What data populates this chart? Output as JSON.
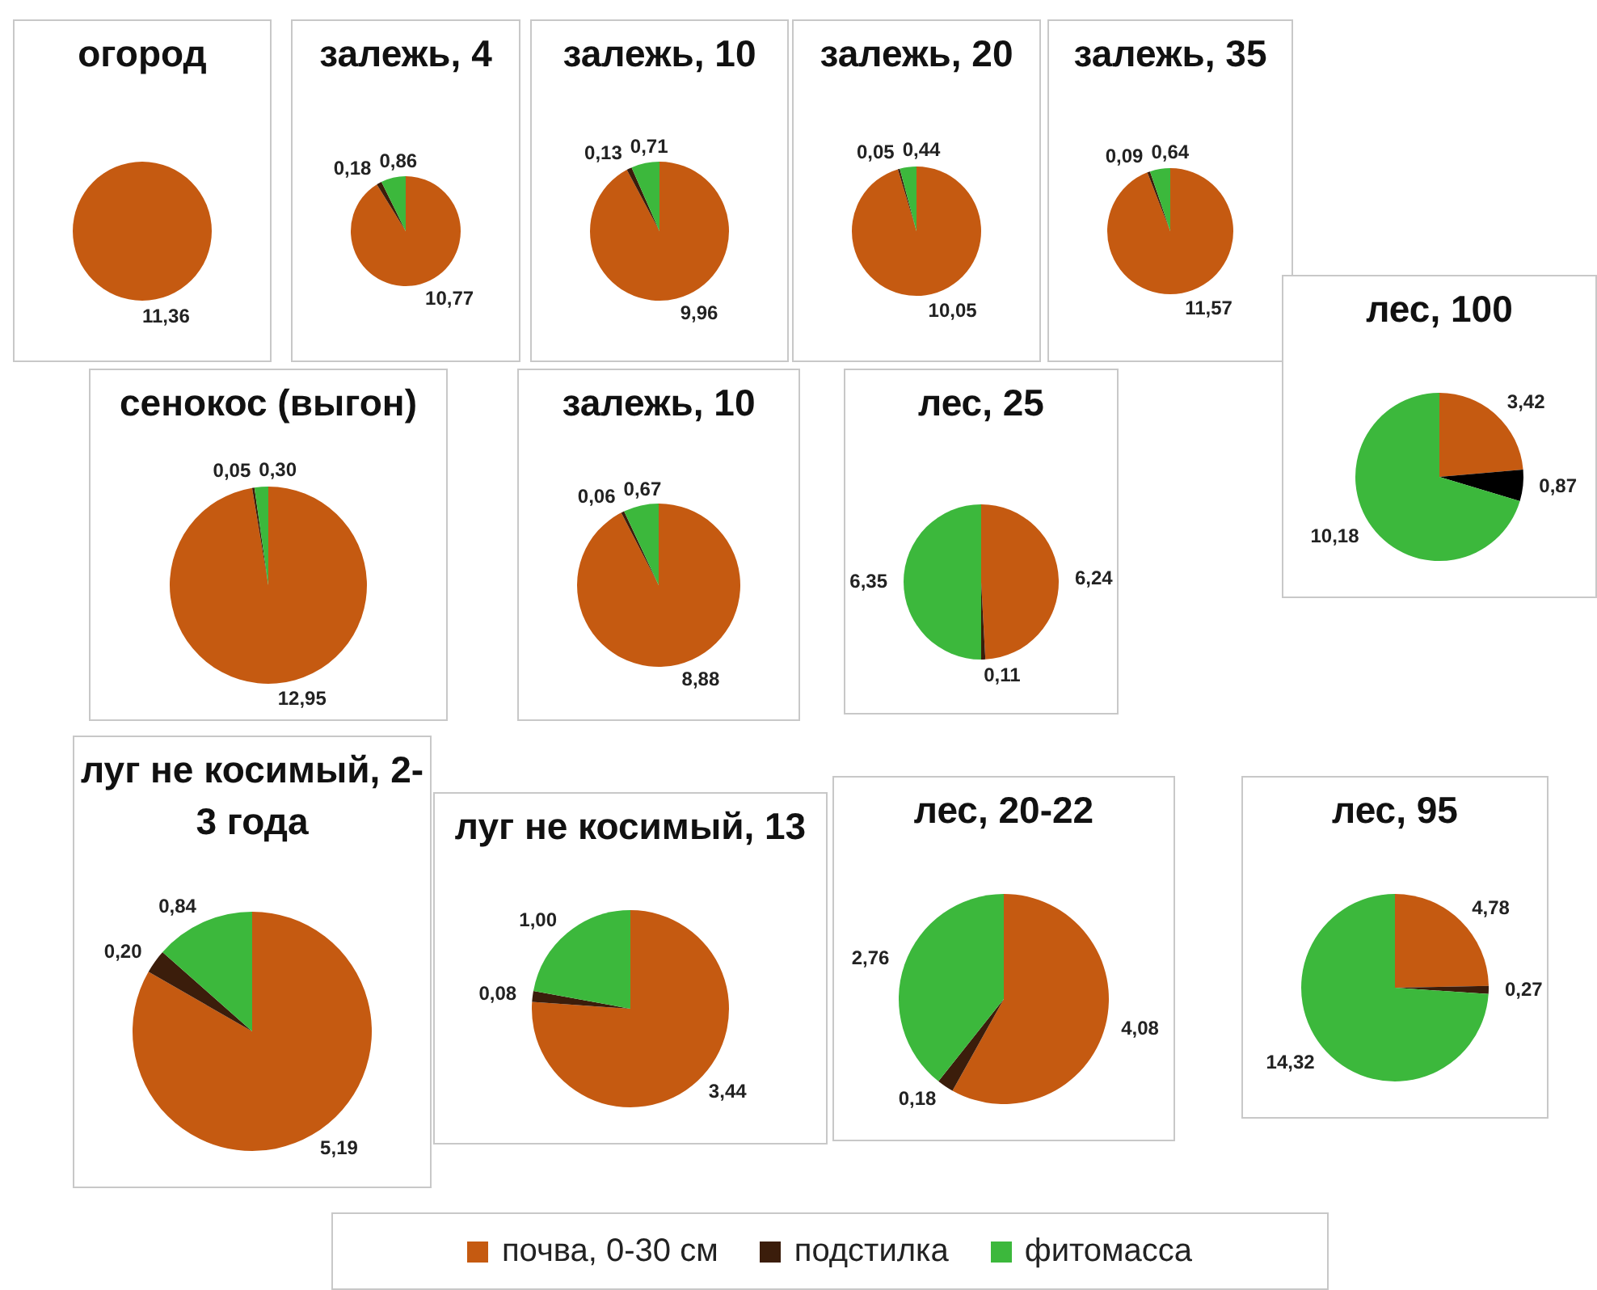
{
  "chart_data": [
    {
      "type": "pie",
      "title": "огород",
      "categories": [
        null,
        null,
        null
      ],
      "values": [
        11.36,
        0,
        0
      ],
      "value_labels": [
        "11,36",
        null,
        null
      ],
      "colors": [
        "#c55a11",
        "#3b1d0b",
        "#3cb83c"
      ]
    },
    {
      "type": "pie",
      "title": "залежь, 4",
      "categories": [
        null,
        null,
        null
      ],
      "values": [
        10.77,
        0.18,
        0.86
      ],
      "value_labels": [
        "10,77",
        "0,18",
        "0,86"
      ],
      "colors": [
        "#c55a11",
        "#3b1d0b",
        "#3cb83c"
      ]
    },
    {
      "type": "pie",
      "title": "залежь, 10",
      "categories": [
        null,
        null,
        null
      ],
      "values": [
        9.96,
        0.13,
        0.71
      ],
      "value_labels": [
        "9,96",
        "0,13",
        "0,71"
      ],
      "colors": [
        "#c55a11",
        "#3b1d0b",
        "#3cb83c"
      ]
    },
    {
      "type": "pie",
      "title": "залежь, 20",
      "categories": [
        null,
        null,
        null
      ],
      "values": [
        10.05,
        0.05,
        0.44
      ],
      "value_labels": [
        "10,05",
        "0,05",
        "0,44"
      ],
      "colors": [
        "#c55a11",
        "#3b1d0b",
        "#3cb83c"
      ]
    },
    {
      "type": "pie",
      "title": "залежь, 35",
      "categories": [
        null,
        null,
        null
      ],
      "values": [
        11.57,
        0.09,
        0.64
      ],
      "value_labels": [
        "11,57",
        "0,09",
        "0,64"
      ],
      "colors": [
        "#c55a11",
        "#3b1d0b",
        "#3cb83c"
      ]
    },
    {
      "type": "pie",
      "title": "лес,  100",
      "categories": [
        null,
        null,
        null
      ],
      "values": [
        3.42,
        0.87,
        10.18
      ],
      "value_labels": [
        "3,42",
        "0,87",
        "10,18"
      ],
      "colors": [
        "#c55a11",
        "#000000",
        "#3cb83c"
      ]
    },
    {
      "type": "pie",
      "title": "сенокос (выгон)",
      "categories": [
        null,
        null,
        null
      ],
      "values": [
        12.95,
        0.05,
        0.3
      ],
      "value_labels": [
        "12,95",
        "0,05",
        "0,30"
      ],
      "colors": [
        "#c55a11",
        "#3b1d0b",
        "#3cb83c"
      ]
    },
    {
      "type": "pie",
      "title": "залежь, 10",
      "categories": [
        null,
        null,
        null
      ],
      "values": [
        8.88,
        0.06,
        0.67
      ],
      "value_labels": [
        "8,88",
        "0,06",
        "0,67"
      ],
      "colors": [
        "#c55a11",
        "#3b1d0b",
        "#3cb83c"
      ]
    },
    {
      "type": "pie",
      "title": "лес, 25",
      "categories": [
        null,
        null,
        null
      ],
      "values": [
        6.24,
        0.11,
        6.35
      ],
      "value_labels": [
        "6,24",
        "0,11",
        "6,35"
      ],
      "colors": [
        "#c55a11",
        "#3b1d0b",
        "#3cb83c"
      ]
    },
    {
      "type": "pie",
      "title": "луг не косимый, 2-3 года",
      "categories": [
        null,
        null,
        null
      ],
      "values": [
        5.19,
        0.2,
        0.84
      ],
      "value_labels": [
        "5,19",
        "0,20",
        "0,84"
      ],
      "colors": [
        "#c55a11",
        "#3b1d0b",
        "#3cb83c"
      ]
    },
    {
      "type": "pie",
      "title": "луг не косимый, 13",
      "categories": [
        null,
        null,
        null
      ],
      "values": [
        3.44,
        0.08,
        1.0
      ],
      "value_labels": [
        "3,44",
        "0,08",
        "1,00"
      ],
      "colors": [
        "#c55a11",
        "#3b1d0b",
        "#3cb83c"
      ]
    },
    {
      "type": "pie",
      "title": "лес, 20-22",
      "categories": [
        null,
        null,
        null
      ],
      "values": [
        4.08,
        0.18,
        2.76
      ],
      "value_labels": [
        "4,08",
        "0,18",
        "2,76"
      ],
      "colors": [
        "#c55a11",
        "#3b1d0b",
        "#3cb83c"
      ]
    },
    {
      "type": "pie",
      "title": "лес, 95",
      "categories": [
        "почва, 0-30 см",
        "подстилка",
        "фитомасса"
      ],
      "values": [
        4.78,
        0.27,
        14.32
      ],
      "value_labels": [
        "4,78",
        "0,27",
        "14,32"
      ],
      "colors": [
        "#c55a11",
        "#3b1d0b",
        "#3cb83c"
      ],
      "legend": "bottom"
    }
  ]
}
